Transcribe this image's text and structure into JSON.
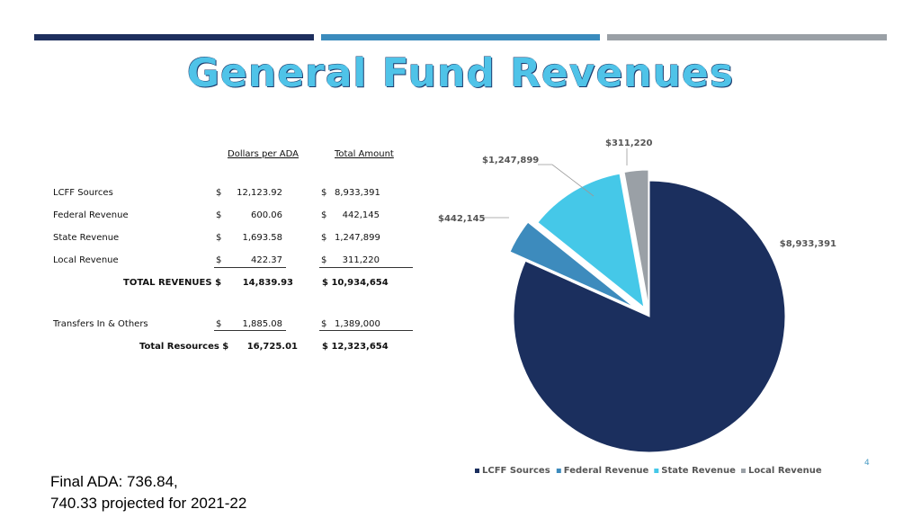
{
  "title": "General Fund Revenues",
  "colors": {
    "bar1": "#1e2f5e",
    "bar2": "#3a8bbd",
    "bar3": "#9aa0a6"
  },
  "table": {
    "headers": {
      "per_ada": "Dollars per ADA",
      "total": "Total Amount"
    },
    "rows": [
      {
        "label": "LCFF Sources",
        "cur1": "$",
        "per_ada": "12,123.92",
        "cur2": "$",
        "total": "8,933,391"
      },
      {
        "label": "Federal Revenue",
        "cur1": "$",
        "per_ada": "600.06",
        "cur2": "$",
        "total": "442,145"
      },
      {
        "label": "State Revenue",
        "cur1": "$",
        "per_ada": "1,693.58",
        "cur2": "$",
        "total": "1,247,899"
      },
      {
        "label": "Local Revenue",
        "cur1": "$",
        "per_ada": "422.37",
        "cur2": "$",
        "total": "311,220"
      }
    ],
    "total_revenues": {
      "label": "TOTAL REVENUES $",
      "per_ada": "14,839.93",
      "total": "$ 10,934,654"
    },
    "transfers": {
      "label": "Transfers In & Others",
      "cur1": "$",
      "per_ada": "1,885.08",
      "cur2": "$",
      "total": "1,389,000"
    },
    "total_resources": {
      "label": "Total Resources $",
      "per_ada": "16,725.01",
      "total": "$ 12,323,654"
    }
  },
  "chart_data": {
    "type": "pie",
    "categories": [
      "LCFF Sources",
      "Federal Revenue",
      "State Revenue",
      "Local Revenue"
    ],
    "values": [
      8933391,
      442145,
      1247899,
      311220
    ],
    "data_labels": [
      "$8,933,391",
      "$442,145",
      "$1,247,899",
      "$311,220"
    ],
    "colors": [
      "#1b2f5e",
      "#3d8bbd",
      "#45c8e8",
      "#9aa0a6"
    ],
    "exploded": true,
    "legend_position": "bottom"
  },
  "note": {
    "line1": "Final ADA: 736.84,",
    "line2": "740.33 projected for 2021-22"
  },
  "page_number": "4"
}
